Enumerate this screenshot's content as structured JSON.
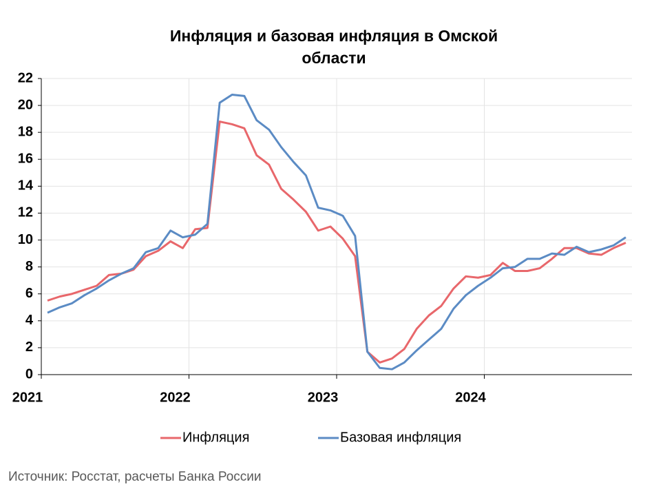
{
  "chart_data": {
    "type": "line",
    "title": "Инфляция и базовая инфляция в Омской области",
    "source": "Источник: Росстат, расчеты Банка России",
    "x": [
      2021.042,
      2021.125,
      2021.208,
      2021.292,
      2021.375,
      2021.458,
      2021.542,
      2021.625,
      2021.708,
      2021.792,
      2021.875,
      2021.958,
      2022.042,
      2022.125,
      2022.208,
      2022.292,
      2022.375,
      2022.458,
      2022.542,
      2022.625,
      2022.708,
      2022.792,
      2022.875,
      2022.958,
      2023.042,
      2023.125,
      2023.208,
      2023.292,
      2023.375,
      2023.458,
      2023.542,
      2023.625,
      2023.708,
      2023.792,
      2023.875,
      2023.958,
      2024.042,
      2024.125,
      2024.208,
      2024.292,
      2024.375,
      2024.458,
      2024.542,
      2024.625,
      2024.708,
      2024.792,
      2024.875,
      2024.958
    ],
    "series": [
      {
        "name": "Инфляция",
        "color": "#e8676b",
        "values": [
          5.5,
          5.8,
          6.0,
          6.3,
          6.6,
          7.4,
          7.5,
          7.8,
          8.8,
          9.2,
          9.9,
          9.4,
          10.8,
          10.9,
          18.8,
          18.6,
          18.3,
          16.3,
          15.6,
          13.8,
          13.0,
          12.1,
          10.7,
          11.0,
          10.1,
          8.8,
          1.7,
          0.9,
          1.2,
          1.9,
          3.4,
          4.4,
          5.1,
          6.4,
          7.3,
          7.2,
          7.4,
          8.3,
          7.7,
          7.7,
          7.9,
          8.6,
          9.4,
          9.4,
          9.0,
          8.9,
          9.4,
          9.8
        ]
      },
      {
        "name": "Базовая инфляция",
        "color": "#5b8bc4",
        "values": [
          4.6,
          5.0,
          5.3,
          5.9,
          6.4,
          7.0,
          7.5,
          7.9,
          9.1,
          9.4,
          10.7,
          10.2,
          10.4,
          11.2,
          20.2,
          20.8,
          20.7,
          18.9,
          18.2,
          16.9,
          15.8,
          14.8,
          12.4,
          12.2,
          11.8,
          10.3,
          1.7,
          0.5,
          0.4,
          0.9,
          1.8,
          2.6,
          3.4,
          4.9,
          5.9,
          6.6,
          7.2,
          7.9,
          8.0,
          8.6,
          8.6,
          9.0,
          8.9,
          9.5,
          9.1,
          9.3,
          9.6,
          10.2
        ]
      }
    ],
    "xlim": [
      2021,
      2025
    ],
    "xticks": [
      2021,
      2022,
      2023,
      2024
    ],
    "ylim": [
      0,
      22
    ],
    "yticks": [
      0,
      2,
      4,
      6,
      8,
      10,
      12,
      14,
      16,
      18,
      20,
      22
    ],
    "grid": true,
    "legend": "bottom"
  }
}
